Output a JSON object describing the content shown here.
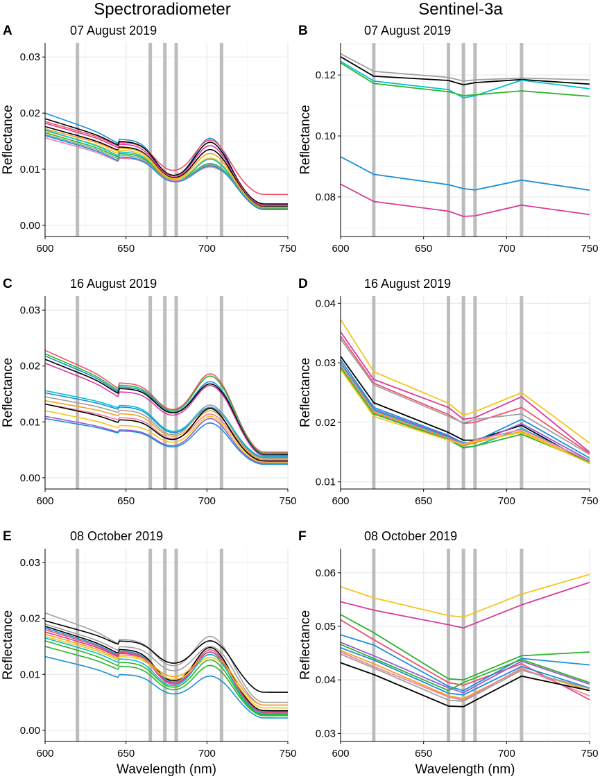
{
  "column_titles": {
    "left": "Spectroradiometer",
    "right": "Sentinel-3a"
  },
  "xlabel": "Wavelength (nm)",
  "ylabel": "Reflectance",
  "colors": {
    "bands": "#bdbdbd",
    "grid": "#ebebeb",
    "black": "#000000",
    "gray": "#a0a0a0",
    "cyan": "#00c0d0",
    "green": "#2cb42c",
    "blue": "#1a8fd8",
    "magenta": "#d93a9a",
    "red": "#f0506e",
    "orange": "#f5a21a",
    "yellow": "#f5c518",
    "purple": "#9b59d0",
    "pink": "#f080a8"
  },
  "chart_data": [
    {
      "panel": "A",
      "type": "line",
      "title": "07 August 2019",
      "xlim": [
        600,
        750
      ],
      "ylim": [
        -0.002,
        0.0325
      ],
      "xticks": [
        600,
        650,
        700,
        750
      ],
      "yticks": [
        0.0,
        0.01,
        0.02,
        0.03
      ],
      "ytick_labels": [
        "0.00",
        "0.01",
        "0.02",
        "0.03"
      ],
      "bands": [
        620,
        665,
        674,
        681,
        709
      ],
      "mode": "spectra",
      "spectra": [
        {
          "color": "blue",
          "base": 0.02,
          "bump1": 0.0154,
          "dip": 0.0078,
          "peak": 0.0155,
          "tail": 0.0035
        },
        {
          "color": "red",
          "base": 0.0185,
          "bump1": 0.0148,
          "dip": 0.009,
          "peak": 0.0152,
          "tail": 0.0055
        },
        {
          "color": "black",
          "base": 0.019,
          "bump1": 0.015,
          "dip": 0.008,
          "peak": 0.0148,
          "tail": 0.0038
        },
        {
          "color": "magenta",
          "base": 0.0182,
          "bump1": 0.0145,
          "dip": 0.0079,
          "peak": 0.0142,
          "tail": 0.0036
        },
        {
          "color": "black",
          "base": 0.0176,
          "bump1": 0.014,
          "dip": 0.0077,
          "peak": 0.0135,
          "tail": 0.0033
        },
        {
          "color": "orange",
          "base": 0.0172,
          "bump1": 0.0138,
          "dip": 0.0076,
          "peak": 0.0128,
          "tail": 0.0032
        },
        {
          "color": "yellow",
          "base": 0.0168,
          "bump1": 0.0134,
          "dip": 0.0075,
          "peak": 0.012,
          "tail": 0.0031
        },
        {
          "color": "cyan",
          "base": 0.017,
          "bump1": 0.0131,
          "dip": 0.0072,
          "peak": 0.0118,
          "tail": 0.003
        },
        {
          "color": "green",
          "base": 0.0165,
          "bump1": 0.0128,
          "dip": 0.0074,
          "peak": 0.011,
          "tail": 0.003
        },
        {
          "color": "gray",
          "base": 0.0162,
          "bump1": 0.0125,
          "dip": 0.0073,
          "peak": 0.0108,
          "tail": 0.0029
        },
        {
          "color": "pink",
          "base": 0.0156,
          "bump1": 0.012,
          "dip": 0.0075,
          "peak": 0.0104,
          "tail": 0.0028
        },
        {
          "color": "blue",
          "base": 0.016,
          "bump1": 0.0122,
          "dip": 0.0072,
          "peak": 0.0106,
          "tail": 0.0028
        }
      ]
    },
    {
      "panel": "B",
      "type": "line",
      "title": "07 August 2019",
      "xlim": [
        600,
        750
      ],
      "ylim": [
        0.067,
        0.1305
      ],
      "xticks": [
        600,
        650,
        700,
        750
      ],
      "yticks": [
        0.08,
        0.1,
        0.12
      ],
      "ytick_labels": [
        "0.08",
        "0.10",
        "0.12"
      ],
      "bands": [
        620,
        665,
        674,
        681,
        709
      ],
      "mode": "points",
      "x": [
        600,
        620,
        665,
        674,
        681,
        709,
        750
      ],
      "series": [
        {
          "color": "gray",
          "values": [
            0.127,
            0.1212,
            0.1192,
            0.118,
            0.1184,
            0.119,
            0.1184
          ]
        },
        {
          "color": "black",
          "values": [
            0.126,
            0.1196,
            0.1182,
            0.1168,
            0.1175,
            0.1185,
            0.117
          ]
        },
        {
          "color": "cyan",
          "values": [
            0.1245,
            0.118,
            0.1152,
            0.1125,
            0.1132,
            0.1183,
            0.1155
          ]
        },
        {
          "color": "green",
          "values": [
            0.124,
            0.1172,
            0.1145,
            0.1132,
            0.1135,
            0.1148,
            0.113
          ]
        },
        {
          "color": "blue",
          "values": [
            0.0932,
            0.0874,
            0.084,
            0.0827,
            0.0823,
            0.0855,
            0.0822
          ]
        },
        {
          "color": "magenta",
          "values": [
            0.0842,
            0.0785,
            0.0753,
            0.0736,
            0.0738,
            0.0773,
            0.0742
          ]
        }
      ]
    },
    {
      "panel": "C",
      "type": "line",
      "title": "16 August 2019",
      "xlim": [
        600,
        750
      ],
      "ylim": [
        -0.002,
        0.0325
      ],
      "xticks": [
        600,
        650,
        700,
        750
      ],
      "yticks": [
        0.0,
        0.01,
        0.02,
        0.03
      ],
      "ytick_labels": [
        "0.00",
        "0.01",
        "0.02",
        "0.03"
      ],
      "bands": [
        620,
        665,
        674,
        681,
        709
      ],
      "mode": "spectra",
      "spectra": [
        {
          "color": "red",
          "base": 0.0228,
          "bump1": 0.017,
          "dip": 0.0114,
          "peak": 0.0186,
          "tail": 0.0046
        },
        {
          "color": "green",
          "base": 0.0222,
          "bump1": 0.0166,
          "dip": 0.0112,
          "peak": 0.0182,
          "tail": 0.0044
        },
        {
          "color": "blue",
          "base": 0.0218,
          "bump1": 0.0163,
          "dip": 0.011,
          "peak": 0.0172,
          "tail": 0.0042
        },
        {
          "color": "black",
          "base": 0.0212,
          "bump1": 0.016,
          "dip": 0.0109,
          "peak": 0.0168,
          "tail": 0.0041
        },
        {
          "color": "magenta",
          "base": 0.0205,
          "bump1": 0.0154,
          "dip": 0.0105,
          "peak": 0.0165,
          "tail": 0.004
        },
        {
          "color": "cyan",
          "base": 0.0156,
          "bump1": 0.013,
          "dip": 0.0076,
          "peak": 0.013,
          "tail": 0.0038
        },
        {
          "color": "blue",
          "base": 0.0152,
          "bump1": 0.0127,
          "dip": 0.0074,
          "peak": 0.0126,
          "tail": 0.0036
        },
        {
          "color": "gray",
          "base": 0.0145,
          "bump1": 0.0121,
          "dip": 0.007,
          "peak": 0.013,
          "tail": 0.0035
        },
        {
          "color": "orange",
          "base": 0.0138,
          "bump1": 0.0115,
          "dip": 0.0068,
          "peak": 0.012,
          "tail": 0.0033
        },
        {
          "color": "pink",
          "base": 0.0132,
          "bump1": 0.0108,
          "dip": 0.0064,
          "peak": 0.0114,
          "tail": 0.0031
        },
        {
          "color": "black",
          "base": 0.0132,
          "bump1": 0.0104,
          "dip": 0.0062,
          "peak": 0.0124,
          "tail": 0.003
        },
        {
          "color": "yellow",
          "base": 0.012,
          "bump1": 0.0094,
          "dip": 0.0058,
          "peak": 0.011,
          "tail": 0.0028
        },
        {
          "color": "purple",
          "base": 0.011,
          "bump1": 0.0086,
          "dip": 0.0052,
          "peak": 0.0106,
          "tail": 0.0026
        },
        {
          "color": "blue",
          "base": 0.0106,
          "bump1": 0.0084,
          "dip": 0.005,
          "peak": 0.0098,
          "tail": 0.0024
        }
      ]
    },
    {
      "panel": "D",
      "type": "line",
      "title": "16 August 2019",
      "xlim": [
        600,
        750
      ],
      "ylim": [
        0.0088,
        0.0412
      ],
      "xticks": [
        600,
        650,
        700,
        750
      ],
      "yticks": [
        0.01,
        0.02,
        0.03,
        0.04
      ],
      "ytick_labels": [
        "0.01",
        "0.02",
        "0.03",
        "0.04"
      ],
      "bands": [
        620,
        665,
        674,
        681,
        709
      ],
      "mode": "points",
      "x": [
        600,
        620,
        665,
        674,
        681,
        709,
        750
      ],
      "series": [
        {
          "color": "yellow",
          "values": [
            0.0373,
            0.0285,
            0.0232,
            0.0212,
            0.0218,
            0.025,
            0.0165
          ]
        },
        {
          "color": "magenta",
          "values": [
            0.0352,
            0.0272,
            0.0225,
            0.0205,
            0.0208,
            0.0243,
            0.015
          ]
        },
        {
          "color": "red",
          "values": [
            0.0345,
            0.0266,
            0.0213,
            0.0198,
            0.02,
            0.0225,
            0.0148
          ]
        },
        {
          "color": "gray",
          "values": [
            0.034,
            0.0263,
            0.021,
            0.0199,
            0.0205,
            0.0214,
            0.0146
          ]
        },
        {
          "color": "black",
          "values": [
            0.0311,
            0.0233,
            0.0183,
            0.017,
            0.017,
            0.0195,
            0.0131
          ]
        },
        {
          "color": "blue",
          "values": [
            0.0305,
            0.0225,
            0.0178,
            0.0165,
            0.0168,
            0.0205,
            0.014
          ]
        },
        {
          "color": "purple",
          "values": [
            0.03,
            0.0222,
            0.0176,
            0.0162,
            0.0165,
            0.0198,
            0.0136
          ]
        },
        {
          "color": "cyan",
          "values": [
            0.0298,
            0.022,
            0.0174,
            0.0158,
            0.016,
            0.019,
            0.0134
          ]
        },
        {
          "color": "orange",
          "values": [
            0.0296,
            0.0218,
            0.0173,
            0.016,
            0.0166,
            0.0185,
            0.0132
          ]
        },
        {
          "color": "pink",
          "values": [
            0.0294,
            0.0216,
            0.0172,
            0.0163,
            0.017,
            0.0188,
            0.0135
          ]
        },
        {
          "color": "green",
          "values": [
            0.0292,
            0.0214,
            0.0171,
            0.0157,
            0.016,
            0.018,
            0.0133
          ]
        },
        {
          "color": "yellow",
          "values": [
            0.0289,
            0.021,
            0.017,
            0.0163,
            0.0168,
            0.0183,
            0.0131
          ]
        }
      ]
    },
    {
      "panel": "E",
      "type": "line",
      "title": "08 October 2019",
      "xlim": [
        600,
        750
      ],
      "ylim": [
        -0.002,
        0.0325
      ],
      "xticks": [
        600,
        650,
        700,
        750
      ],
      "yticks": [
        0.0,
        0.01,
        0.02,
        0.03
      ],
      "ytick_labels": [
        "0.00",
        "0.01",
        "0.02",
        "0.03"
      ],
      "bands": [
        620,
        665,
        674,
        681,
        709
      ],
      "mode": "spectra",
      "spectra": [
        {
          "color": "gray",
          "base": 0.021,
          "bump1": 0.0163,
          "dip": 0.0108,
          "peak": 0.0168,
          "tail": 0.005
        },
        {
          "color": "black",
          "base": 0.0196,
          "bump1": 0.016,
          "dip": 0.0114,
          "peak": 0.016,
          "tail": 0.0068
        },
        {
          "color": "gray",
          "base": 0.019,
          "bump1": 0.015,
          "dip": 0.01,
          "peak": 0.015,
          "tail": 0.0045
        },
        {
          "color": "black",
          "base": 0.0186,
          "bump1": 0.0145,
          "dip": 0.008,
          "peak": 0.0148,
          "tail": 0.0035
        },
        {
          "color": "blue",
          "base": 0.0183,
          "bump1": 0.0142,
          "dip": 0.0078,
          "peak": 0.014,
          "tail": 0.003
        },
        {
          "color": "red",
          "base": 0.018,
          "bump1": 0.014,
          "dip": 0.0076,
          "peak": 0.0144,
          "tail": 0.0033
        },
        {
          "color": "magenta",
          "base": 0.0176,
          "bump1": 0.0138,
          "dip": 0.0074,
          "peak": 0.014,
          "tail": 0.0031
        },
        {
          "color": "orange",
          "base": 0.0172,
          "bump1": 0.0135,
          "dip": 0.009,
          "peak": 0.0135,
          "tail": 0.0045
        },
        {
          "color": "yellow",
          "base": 0.0168,
          "bump1": 0.0132,
          "dip": 0.0085,
          "peak": 0.013,
          "tail": 0.004
        },
        {
          "color": "cyan",
          "base": 0.0165,
          "bump1": 0.0128,
          "dip": 0.0072,
          "peak": 0.0136,
          "tail": 0.003
        },
        {
          "color": "green",
          "base": 0.016,
          "bump1": 0.0122,
          "dip": 0.007,
          "peak": 0.0126,
          "tail": 0.0028
        },
        {
          "color": "green",
          "base": 0.015,
          "bump1": 0.0115,
          "dip": 0.0066,
          "peak": 0.0116,
          "tail": 0.0026
        },
        {
          "color": "blue",
          "base": 0.0132,
          "bump1": 0.01,
          "dip": 0.006,
          "peak": 0.0097,
          "tail": 0.0022
        }
      ]
    },
    {
      "panel": "F",
      "type": "line",
      "title": "08 October 2019",
      "xlim": [
        600,
        750
      ],
      "ylim": [
        0.0285,
        0.0645
      ],
      "xticks": [
        600,
        650,
        700,
        750
      ],
      "yticks": [
        0.03,
        0.04,
        0.05,
        0.06
      ],
      "ytick_labels": [
        "0.03",
        "0.04",
        "0.05",
        "0.06"
      ],
      "bands": [
        620,
        665,
        674,
        681,
        709
      ],
      "mode": "points",
      "x": [
        600,
        620,
        665,
        674,
        709,
        750
      ],
      "series": [
        {
          "color": "yellow",
          "values": [
            0.0574,
            0.0553,
            0.052,
            0.0517,
            0.056,
            0.0597
          ]
        },
        {
          "color": "magenta",
          "values": [
            0.0546,
            0.053,
            0.0503,
            0.0497,
            0.054,
            0.0582
          ]
        },
        {
          "color": "green",
          "values": [
            0.0522,
            0.0488,
            0.0402,
            0.04,
            0.0445,
            0.0452
          ]
        },
        {
          "color": "red",
          "values": [
            0.0512,
            0.0475,
            0.0395,
            0.039,
            0.043,
            0.0363
          ]
        },
        {
          "color": "blue",
          "values": [
            0.0484,
            0.0465,
            0.0388,
            0.038,
            0.044,
            0.0428
          ]
        },
        {
          "color": "purple",
          "values": [
            0.047,
            0.0445,
            0.0385,
            0.0376,
            0.0435,
            0.0392
          ]
        },
        {
          "color": "green",
          "values": [
            0.0466,
            0.044,
            0.038,
            0.0395,
            0.0438,
            0.0395
          ]
        },
        {
          "color": "blue",
          "values": [
            0.046,
            0.0437,
            0.0375,
            0.0372,
            0.0425,
            0.0385
          ]
        },
        {
          "color": "orange",
          "values": [
            0.0455,
            0.043,
            0.037,
            0.0365,
            0.042,
            0.038
          ]
        },
        {
          "color": "pink",
          "values": [
            0.0452,
            0.0425,
            0.0368,
            0.0362,
            0.0422,
            0.037
          ]
        },
        {
          "color": "gray",
          "values": [
            0.0448,
            0.0422,
            0.0362,
            0.036,
            0.0418,
            0.0384
          ]
        },
        {
          "color": "black",
          "values": [
            0.0432,
            0.041,
            0.0351,
            0.035,
            0.0407,
            0.038
          ]
        }
      ]
    }
  ]
}
